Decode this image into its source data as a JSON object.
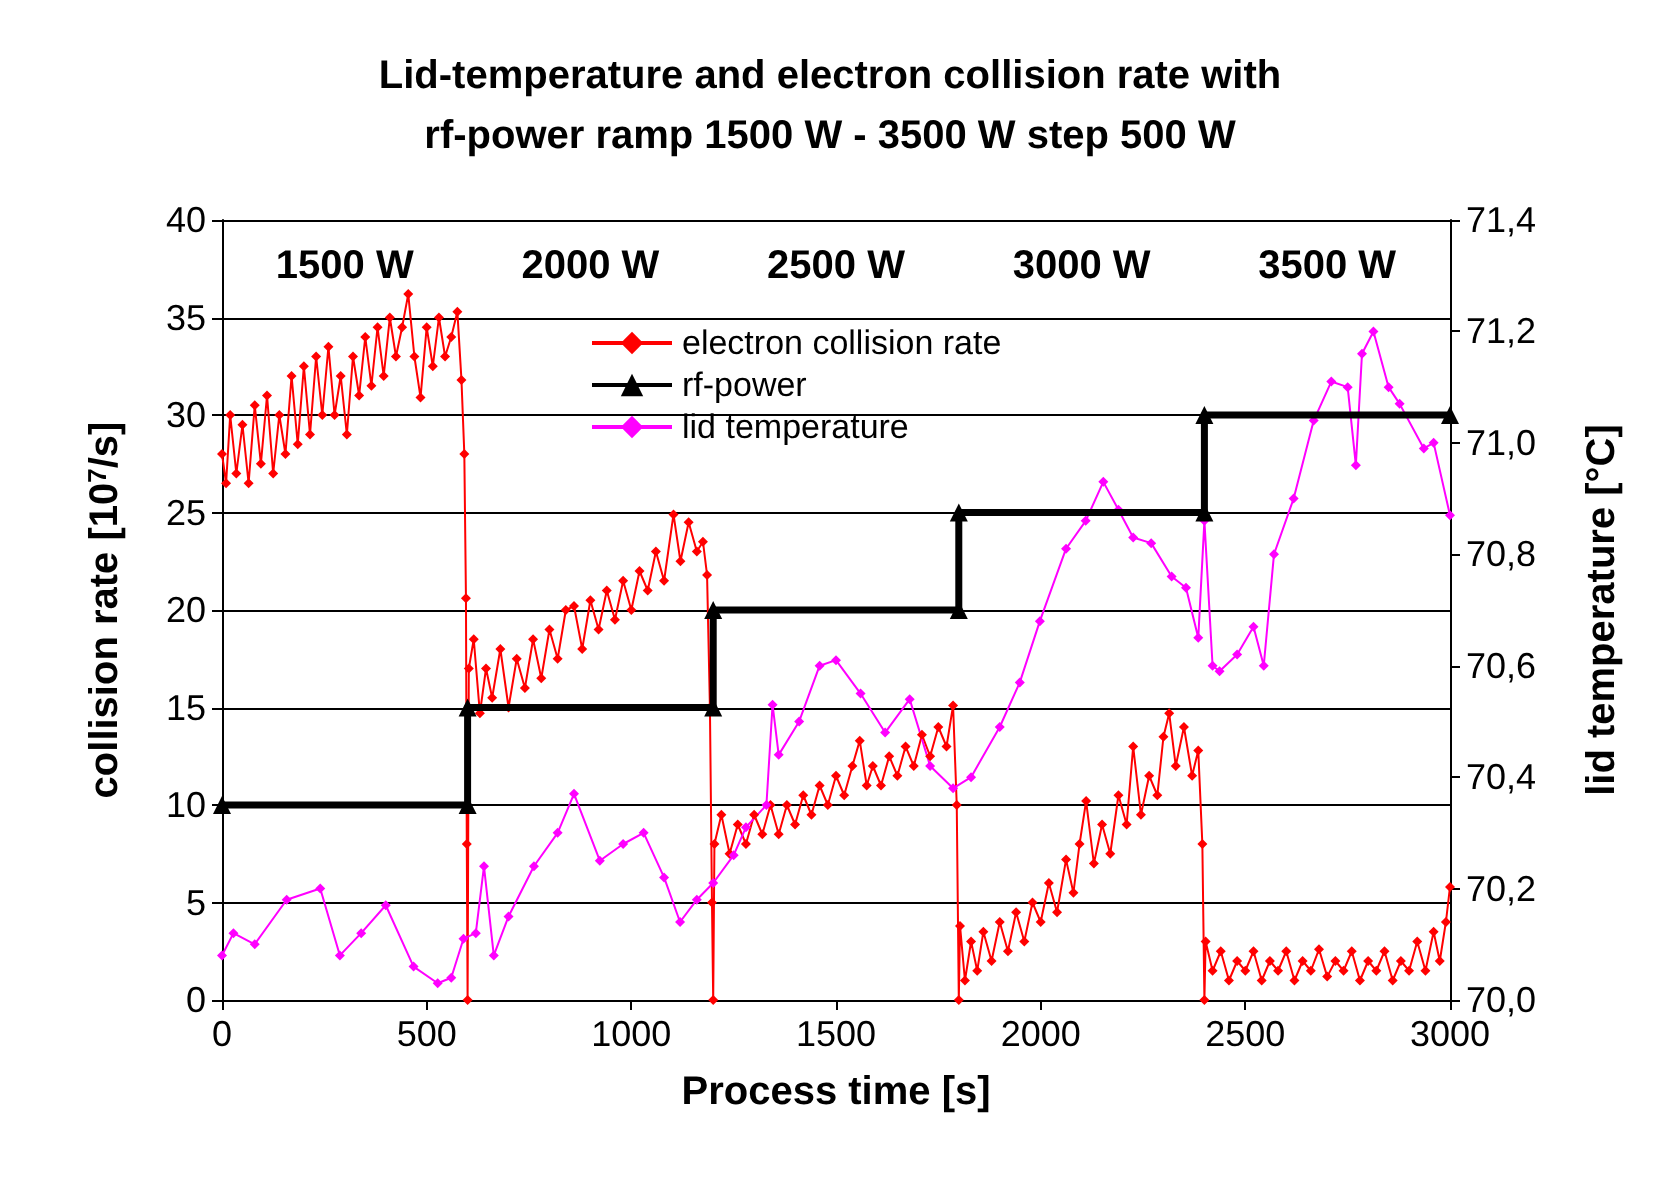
{
  "chart_data": {
    "type": "line",
    "title": "Lid-temperature and electron collision rate with\nrf-power ramp 1500 W - 3500 W step 500 W",
    "xlabel": "Process time [s]",
    "ylabel": "collision rate [10$^{7}$/s]",
    "y2label": "lid temperature [°C]",
    "xlim": [
      0,
      3000
    ],
    "xticks": [
      0,
      500,
      1000,
      1500,
      2000,
      2500,
      3000
    ],
    "ylim": [
      0,
      40
    ],
    "yticks": [
      0,
      5,
      10,
      15,
      20,
      25,
      30,
      35,
      40
    ],
    "y2lim": [
      70,
      71.4
    ],
    "y2ticks": [
      {
        "value": 70,
        "label": "70,0"
      },
      {
        "value": 70.2,
        "label": "70,2"
      },
      {
        "value": 70.4,
        "label": "70,4"
      },
      {
        "value": 70.6,
        "label": "70,6"
      },
      {
        "value": 70.8,
        "label": "70,8"
      },
      {
        "value": 71,
        "label": "71,0"
      },
      {
        "value": 71.2,
        "label": "71,2"
      },
      {
        "value": 71.4,
        "label": "71,4"
      }
    ],
    "grid": "y",
    "legend": "top",
    "annotations": [
      "1500 W",
      "2000 W",
      "2500 W",
      "3000 W",
      "3500 W"
    ],
    "series": [
      {
        "name": "electron collision rate",
        "color": "#ff0000",
        "marker": "diamond",
        "x": [
          0,
          10,
          20,
          35,
          50,
          65,
          80,
          95,
          110,
          125,
          140,
          155,
          170,
          185,
          200,
          215,
          230,
          245,
          260,
          275,
          290,
          305,
          320,
          335,
          350,
          365,
          380,
          395,
          410,
          425,
          440,
          455,
          470,
          485,
          500,
          515,
          530,
          545,
          560,
          575,
          585,
          592,
          596,
          598,
          600,
          603,
          615,
          630,
          645,
          660,
          680,
          700,
          720,
          740,
          760,
          780,
          800,
          820,
          840,
          860,
          880,
          900,
          920,
          940,
          960,
          980,
          1000,
          1020,
          1040,
          1060,
          1080,
          1103,
          1120,
          1140,
          1160,
          1175,
          1185,
          1192,
          1197,
          1200,
          1203,
          1220,
          1240,
          1260,
          1280,
          1300,
          1320,
          1340,
          1360,
          1380,
          1400,
          1420,
          1440,
          1460,
          1480,
          1500,
          1520,
          1540,
          1558,
          1575,
          1590,
          1610,
          1630,
          1650,
          1670,
          1690,
          1710,
          1730,
          1750,
          1770,
          1786,
          1795,
          1800,
          1803,
          1815,
          1830,
          1845,
          1860,
          1880,
          1900,
          1920,
          1940,
          1960,
          1980,
          2000,
          2020,
          2040,
          2062,
          2080,
          2095,
          2111,
          2130,
          2150,
          2170,
          2190,
          2210,
          2226,
          2245,
          2265,
          2285,
          2300,
          2314,
          2330,
          2350,
          2370,
          2385,
          2395,
          2400,
          2403,
          2420,
          2440,
          2460,
          2480,
          2500,
          2520,
          2540,
          2560,
          2580,
          2600,
          2620,
          2640,
          2660,
          2680,
          2700,
          2720,
          2740,
          2760,
          2780,
          2800,
          2820,
          2840,
          2860,
          2880,
          2900,
          2920,
          2940,
          2960,
          2975,
          2990,
          3000
        ],
        "values": [
          28,
          26.5,
          30,
          27,
          29.5,
          26.5,
          30.5,
          27.5,
          31,
          27,
          30,
          28,
          32,
          28.5,
          32.5,
          29,
          33,
          30,
          33.5,
          30,
          32,
          29,
          33,
          31,
          34,
          31.5,
          34.5,
          32,
          35,
          33,
          34.5,
          36.2,
          33,
          30.9,
          34.5,
          32.5,
          35,
          33,
          34,
          35.3,
          31.8,
          28,
          20.6,
          8,
          0,
          17,
          18.5,
          14.7,
          17,
          15.5,
          18,
          15,
          17.5,
          16,
          18.5,
          16.5,
          19,
          17.5,
          20,
          20.2,
          18,
          20.5,
          19,
          21,
          19.5,
          21.5,
          20,
          22,
          21,
          23,
          21.5,
          24.9,
          22.5,
          24.5,
          23,
          23.5,
          21.8,
          15,
          5,
          0,
          8,
          9.5,
          7.5,
          9,
          8,
          9.5,
          8.5,
          10,
          8.5,
          10,
          9,
          10.5,
          9.5,
          11,
          10,
          11.5,
          10.5,
          12,
          13.3,
          11,
          12,
          11,
          12.5,
          11.5,
          13,
          12,
          13.6,
          12.5,
          14,
          13,
          15.1,
          10,
          0,
          3.8,
          1,
          3,
          1.5,
          3.5,
          2,
          4,
          2.5,
          4.5,
          3,
          5,
          4,
          6,
          4.5,
          7.2,
          5.5,
          8,
          10.2,
          7,
          9,
          7.5,
          10.5,
          9,
          13,
          9.5,
          11.5,
          10.5,
          13.5,
          14.7,
          12,
          14,
          11.5,
          12.8,
          8,
          0,
          3,
          1.5,
          2.5,
          1,
          2,
          1.5,
          2.5,
          1,
          2,
          1.5,
          2.5,
          1,
          2,
          1.5,
          2.6,
          1.2,
          2,
          1.5,
          2.5,
          1,
          2,
          1.5,
          2.5,
          1,
          2,
          1.5,
          3,
          1.5,
          3.5,
          2,
          4,
          5.8
        ]
      },
      {
        "name": "rf-power",
        "color": "#000000",
        "marker": "triangle",
        "x": [
          0,
          600,
          600,
          1200,
          1200,
          1800,
          1800,
          2400,
          2400,
          3000
        ],
        "values": [
          10,
          10,
          15,
          15,
          20,
          20,
          25,
          25,
          30,
          30
        ]
      },
      {
        "name": "lid temperature",
        "color": "#ff00ff",
        "marker": "diamond",
        "axis": "y2",
        "x": [
          0,
          28,
          80,
          158,
          240,
          288,
          340,
          400,
          468,
          527,
          560,
          590,
          620,
          640,
          664,
          700,
          762,
          820,
          860,
          923,
          980,
          1030,
          1080,
          1119,
          1160,
          1200,
          1250,
          1280,
          1330,
          1345,
          1360,
          1410,
          1460,
          1500,
          1560,
          1620,
          1680,
          1730,
          1786,
          1830,
          1900,
          1949,
          1998,
          2062,
          2110,
          2153,
          2190,
          2226,
          2270,
          2320,
          2355,
          2385,
          2400,
          2420,
          2437,
          2480,
          2520,
          2545,
          2570,
          2618,
          2667,
          2710,
          2750,
          2770,
          2785,
          2813,
          2850,
          2877,
          2936,
          2960,
          3000
        ],
        "values": [
          70.08,
          70.12,
          70.1,
          70.18,
          70.2,
          70.08,
          70.12,
          70.17,
          70.06,
          70.03,
          70.04,
          70.11,
          70.12,
          70.24,
          70.08,
          70.15,
          70.24,
          70.3,
          70.37,
          70.25,
          70.28,
          70.3,
          70.22,
          70.14,
          70.18,
          70.21,
          70.26,
          70.31,
          70.35,
          70.53,
          70.44,
          70.5,
          70.6,
          70.61,
          70.55,
          70.48,
          70.54,
          70.42,
          70.38,
          70.4,
          70.49,
          70.57,
          70.68,
          70.81,
          70.86,
          70.93,
          70.88,
          70.83,
          70.82,
          70.76,
          70.74,
          70.65,
          70.86,
          70.6,
          70.59,
          70.62,
          70.67,
          70.6,
          70.8,
          70.9,
          71.04,
          71.11,
          71.1,
          70.96,
          71.16,
          71.2,
          71.1,
          71.07,
          70.99,
          71.0,
          70.87
        ]
      }
    ]
  }
}
